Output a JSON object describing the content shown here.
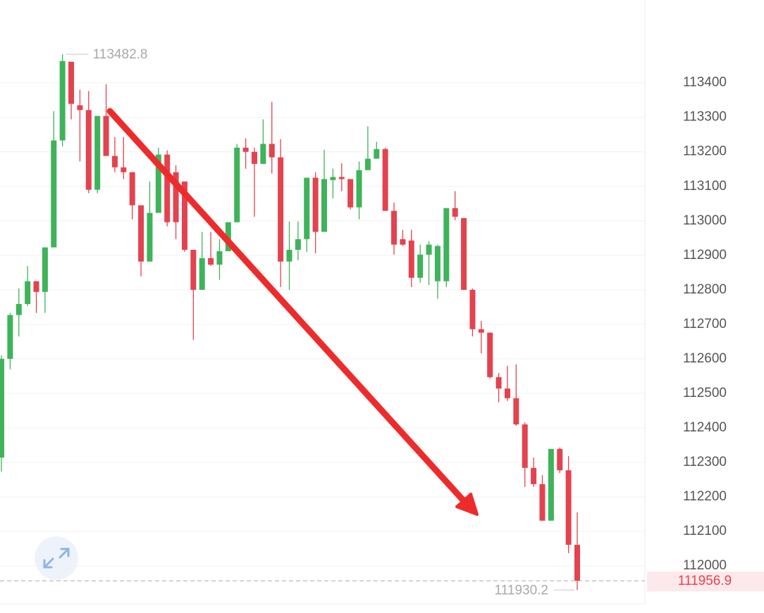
{
  "chart_data": {
    "type": "candlestick",
    "up_color": "#3fb35a",
    "down_color": "#e3434f",
    "grid": true,
    "ylim": [
      111890,
      113640
    ],
    "yticks": [
      112000,
      112100,
      112200,
      112300,
      112400,
      112500,
      112600,
      112700,
      112800,
      112900,
      113000,
      113100,
      113200,
      113300,
      113400
    ],
    "open": [
      112314,
      112600,
      112727,
      112759,
      112825,
      112794,
      112923,
      113233,
      113461,
      113335,
      113321,
      113090,
      113304,
      113188,
      113155,
      113141,
      113045,
      112882,
      113023,
      113192,
      113141,
      113114,
      112916,
      112800,
      112892,
      112873,
      112912,
      112996,
      113212,
      113200,
      113165,
      113223,
      113184,
      112882,
      112916,
      112947,
      113125,
      112968,
      113118,
      113127,
      113121,
      113039,
      113147,
      113180,
      113208,
      113029,
      112947,
      112943,
      112835,
      112902,
      112825,
      112825,
      113037,
      113008,
      112800,
      112686,
      112676,
      112547,
      112514,
      112486,
      112410,
      112284,
      112237,
      112131,
      112339,
      112277,
      112061
    ],
    "high": [
      112610,
      112733,
      112804,
      112869,
      112825,
      112923,
      113318,
      113482.8,
      113461,
      113380,
      113376,
      113304,
      113396,
      113243,
      113243,
      113141,
      113045,
      113114,
      113212,
      113204,
      113161,
      113114,
      112916,
      112968,
      112968,
      112947,
      112996,
      113223,
      113239,
      113212,
      113294,
      113345,
      113237,
      112998,
      112998,
      113125,
      113141,
      113206,
      113151,
      113167,
      113121,
      113172,
      113274,
      113229,
      113212,
      113053,
      112974,
      112974,
      112931,
      112941,
      112931,
      113037,
      113086,
      113008,
      112804,
      112710,
      112676,
      112559,
      112580,
      112584,
      112416,
      112314,
      112263,
      112339,
      112343,
      112318,
      112155
    ],
    "low": [
      112273,
      112570,
      112665,
      112753,
      112733,
      112733,
      112923,
      113216,
      113294,
      113172,
      113080,
      113080,
      113188,
      113141,
      113121,
      113004,
      112839,
      112882,
      113023,
      112984,
      112947,
      112910,
      112655,
      112800,
      112869,
      112829,
      112912,
      112996,
      113151,
      113012,
      113165,
      113137,
      112808,
      112800,
      112886,
      112910,
      112906,
      112968,
      113065,
      113086,
      113033,
      113004,
      113147,
      113180,
      113029,
      112902,
      112927,
      112808,
      112821,
      112814,
      112774,
      112808,
      113002,
      112800,
      112665,
      112616,
      112543,
      112474,
      112478,
      112406,
      112229,
      112229,
      112131,
      112131,
      112269,
      112037,
      111930.2
    ],
    "close": [
      112600,
      112727,
      112759,
      112825,
      112794,
      112923,
      113233,
      113463,
      113339,
      113321,
      113090,
      113304,
      113188,
      113155,
      113141,
      113045,
      112882,
      113023,
      113192,
      112996,
      112996,
      112916,
      112800,
      112892,
      112873,
      112912,
      112996,
      113212,
      113200,
      113165,
      113223,
      113184,
      112882,
      112916,
      112947,
      113125,
      112968,
      113121,
      113127,
      113121,
      113039,
      113147,
      113180,
      113208,
      113029,
      112931,
      112931,
      112835,
      112902,
      112931,
      112927,
      113037,
      113012,
      112800,
      112686,
      112676,
      112547,
      112514,
      112486,
      112410,
      112284,
      112237,
      112131,
      112339,
      112277,
      112061,
      111956.9
    ]
  }
}
